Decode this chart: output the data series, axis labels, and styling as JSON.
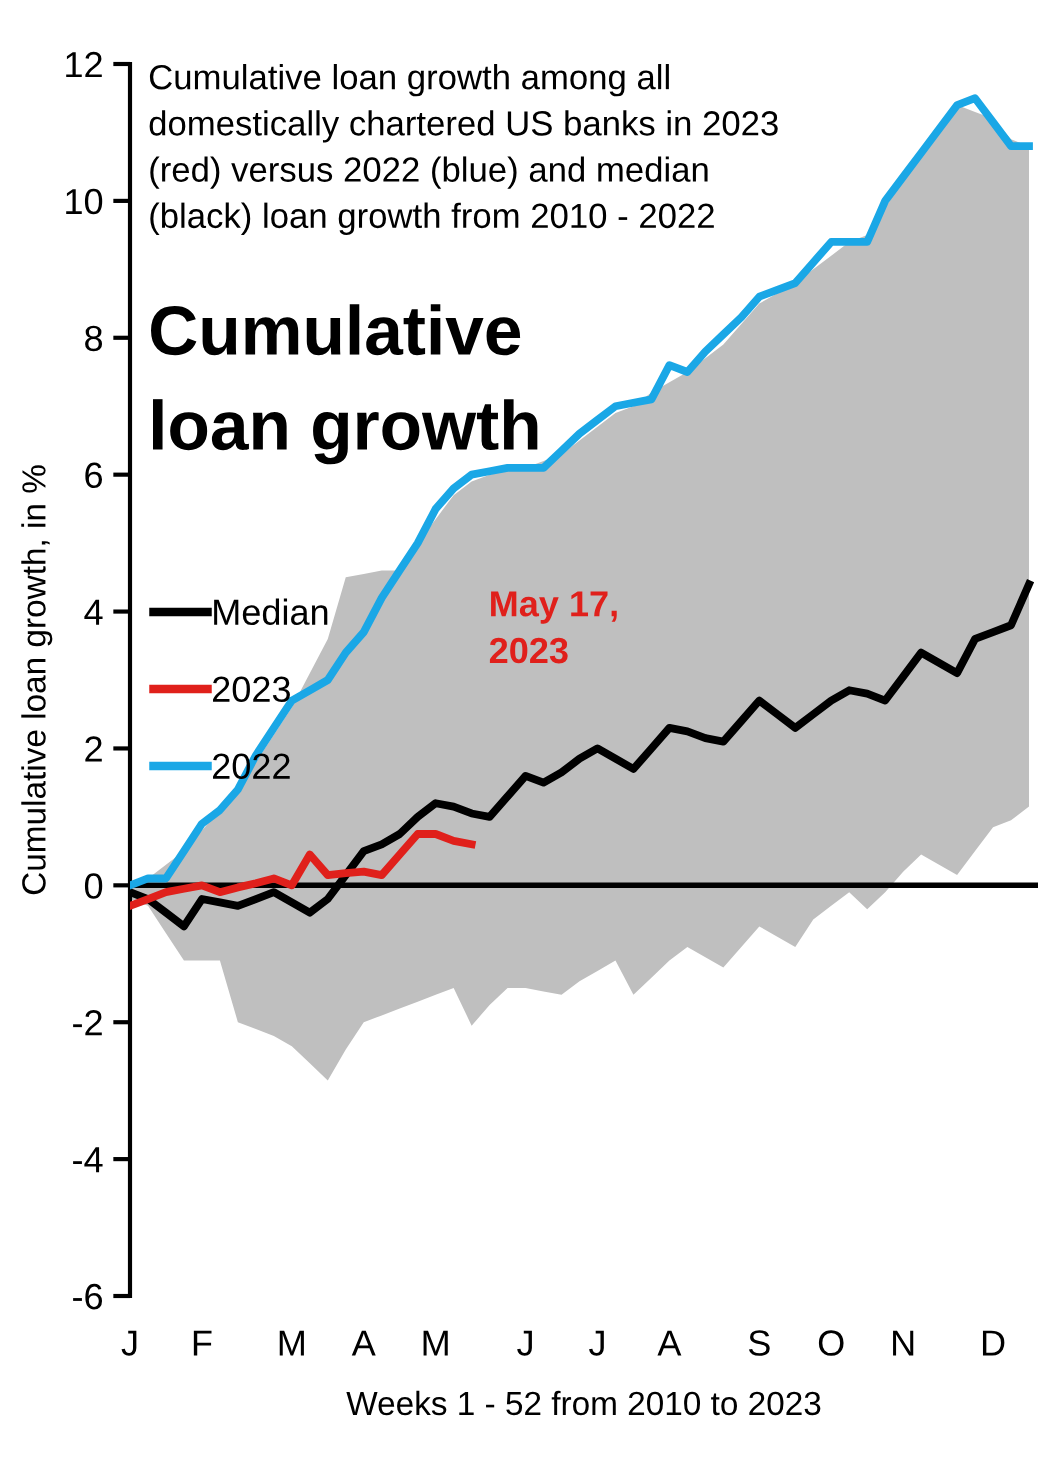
{
  "chart_data": {
    "type": "line",
    "title": "Cumulative\nloan growth",
    "subtitle": "Cumulative loan growth among all\ndomestically chartered US banks in 2023\n(red) versus 2022 (blue) and median\n(black) loan growth from 2010 - 2022",
    "xlabel": "Weeks 1 - 52 from 2010 to 2023",
    "ylabel": "Cumulative loan growth, in %",
    "categories": [
      "J",
      null,
      null,
      null,
      "F",
      null,
      null,
      null,
      null,
      "M",
      null,
      null,
      null,
      "A",
      null,
      null,
      null,
      "M",
      null,
      null,
      null,
      null,
      "J",
      null,
      null,
      null,
      "J",
      null,
      null,
      null,
      "A",
      null,
      null,
      null,
      null,
      "S",
      null,
      null,
      null,
      "O",
      null,
      null,
      null,
      "N",
      null,
      null,
      null,
      null,
      "D",
      null,
      null
    ],
    "ylim": [
      -6,
      12
    ],
    "yticks": [
      -6,
      -4,
      -2,
      0,
      2,
      4,
      6,
      8,
      10,
      12
    ],
    "series": [
      {
        "name": "Median",
        "color": "#000000",
        "values": [
          -0.1,
          -0.2,
          -0.4,
          -0.6,
          -0.2,
          -0.25,
          -0.3,
          -0.2,
          -0.1,
          -0.25,
          -0.4,
          -0.2,
          0.15,
          0.5,
          0.6,
          0.75,
          1.0,
          1.2,
          1.15,
          1.05,
          1.0,
          1.3,
          1.6,
          1.5,
          1.65,
          1.85,
          2.0,
          1.85,
          1.7,
          2.0,
          2.3,
          2.25,
          2.15,
          2.1,
          2.4,
          2.7,
          2.5,
          2.3,
          2.5,
          2.7,
          2.85,
          2.8,
          2.7,
          3.05,
          3.4,
          3.25,
          3.1,
          3.6,
          3.7,
          3.8,
          4.4
        ],
        "upper": [
          0,
          0.1,
          0.3,
          0.5,
          0.8,
          1.1,
          1.4,
          1.8,
          2.2,
          2.6,
          3.1,
          3.6,
          4.5,
          4.55,
          4.6,
          4.6,
          5.0,
          5.35,
          5.7,
          5.9,
          6.0,
          6.1,
          6.1,
          6.2,
          6.3,
          6.5,
          6.7,
          6.9,
          7.0,
          7.2,
          7.35,
          7.5,
          7.7,
          7.9,
          8.2,
          8.5,
          8.65,
          8.8,
          9.0,
          9.2,
          9.4,
          9.5,
          9.9,
          10.3,
          10.7,
          11.05,
          11.4,
          11.3,
          11.2,
          10.9,
          10.8
        ],
        "lower": [
          -0.2,
          -0.3,
          -0.7,
          -1.1,
          -1.1,
          -1.1,
          -2.0,
          -2.1,
          -2.2,
          -2.35,
          -2.6,
          -2.85,
          -2.4,
          -2.0,
          -1.9,
          -1.8,
          -1.7,
          -1.6,
          -1.5,
          -2.05,
          -1.75,
          -1.5,
          -1.5,
          -1.55,
          -1.6,
          -1.4,
          -1.25,
          -1.1,
          -1.6,
          -1.35,
          -1.1,
          -0.9,
          -1.05,
          -1.2,
          -0.9,
          -0.6,
          -0.75,
          -0.9,
          -0.5,
          -0.3,
          -0.1,
          -0.35,
          -0.1,
          0.2,
          0.45,
          0.3,
          0.15,
          0.5,
          0.85,
          0.95,
          1.15
        ]
      },
      {
        "name": "2022",
        "color": "#1aa7e6",
        "values": [
          0.0,
          0.1,
          0.1,
          0.5,
          0.9,
          1.1,
          1.4,
          1.9,
          2.3,
          2.7,
          2.85,
          3.0,
          3.4,
          3.7,
          4.2,
          4.6,
          5.0,
          5.5,
          5.8,
          6.0,
          6.05,
          6.1,
          6.1,
          6.1,
          6.35,
          6.6,
          6.8,
          7.0,
          7.05,
          7.1,
          7.6,
          7.5,
          7.8,
          8.05,
          8.3,
          8.6,
          8.7,
          8.8,
          9.1,
          9.4,
          9.4,
          9.4,
          10.0,
          10.35,
          10.7,
          11.05,
          11.4,
          11.5,
          11.15,
          10.8,
          10.8
        ]
      },
      {
        "name": "2023",
        "color": "#e0201b",
        "values": [
          -0.3,
          -0.2,
          -0.1,
          -0.05,
          0,
          -0.1,
          -0.03,
          0.03,
          0.1,
          0,
          0.45,
          0.15,
          0.18,
          0.2,
          0.15,
          0.45,
          0.75,
          0.75,
          0.65,
          0.6,
          null,
          null,
          null,
          null,
          null,
          null,
          null,
          null,
          null,
          null,
          null,
          null,
          null,
          null,
          null,
          null,
          null,
          null,
          null,
          null,
          null,
          null,
          null,
          null,
          null,
          null,
          null,
          null,
          null,
          null,
          null
        ]
      }
    ],
    "ref_lines": [
      {
        "axis": "y",
        "value": 0,
        "color": "#000000"
      }
    ],
    "annotations": [
      "May 17,\n2023"
    ],
    "legend": "left",
    "grid": false
  }
}
